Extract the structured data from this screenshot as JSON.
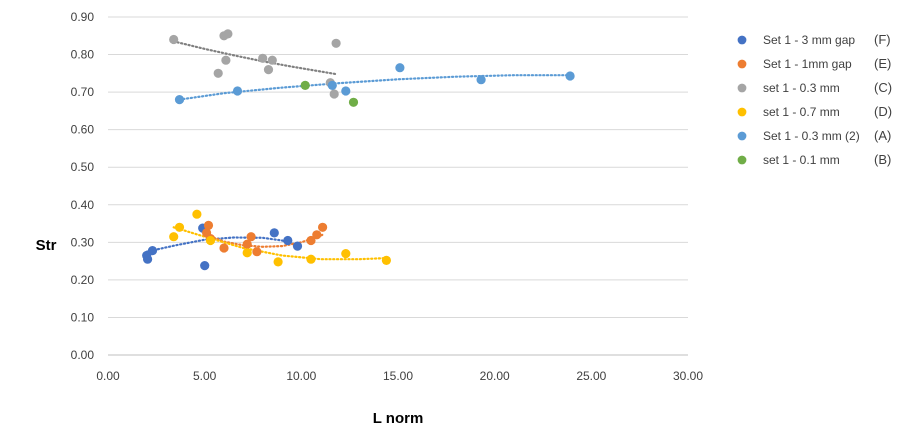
{
  "chart_data": {
    "type": "scatter",
    "xlabel": "L norm",
    "ylabel": "Str",
    "xlim": [
      0,
      30
    ],
    "ylim": [
      0,
      0.9
    ],
    "x_ticks": [
      "0.00",
      "5.00",
      "10.00",
      "15.00",
      "20.00",
      "25.00",
      "30.00"
    ],
    "y_ticks": [
      "0.00",
      "0.10",
      "0.20",
      "0.30",
      "0.40",
      "0.50",
      "0.60",
      "0.70",
      "0.80",
      "0.90"
    ],
    "grid": "horizontal",
    "legend_position": "right",
    "series": [
      {
        "name": "Set 1 - 3 mm gap",
        "tag": "(F)",
        "color": "#4472c4",
        "trend_color": "#4472c4",
        "points": [
          [
            2.0,
            0.265
          ],
          [
            2.05,
            0.255
          ],
          [
            2.3,
            0.278
          ],
          [
            4.9,
            0.338
          ],
          [
            5.0,
            0.238
          ],
          [
            8.6,
            0.325
          ],
          [
            9.3,
            0.305
          ],
          [
            9.8,
            0.29
          ]
        ],
        "trendline": [
          [
            2.0,
            0.275
          ],
          [
            3.5,
            0.292
          ],
          [
            5.0,
            0.307
          ],
          [
            6.5,
            0.313
          ],
          [
            8.0,
            0.312
          ],
          [
            9.0,
            0.305
          ],
          [
            9.8,
            0.293
          ]
        ]
      },
      {
        "name": "Set 1 - 1mm gap",
        "tag": "(E)",
        "color": "#ed7d31",
        "trend_color": "#ed7d31",
        "points": [
          [
            5.1,
            0.325
          ],
          [
            5.2,
            0.345
          ],
          [
            5.3,
            0.31
          ],
          [
            6.0,
            0.285
          ],
          [
            7.2,
            0.295
          ],
          [
            7.4,
            0.315
          ],
          [
            7.7,
            0.275
          ],
          [
            10.5,
            0.305
          ],
          [
            10.8,
            0.32
          ],
          [
            11.1,
            0.34
          ]
        ],
        "trendline": [
          [
            5.1,
            0.32
          ],
          [
            6.0,
            0.302
          ],
          [
            7.0,
            0.292
          ],
          [
            8.0,
            0.288
          ],
          [
            9.0,
            0.29
          ],
          [
            10.0,
            0.3
          ],
          [
            11.1,
            0.32
          ]
        ]
      },
      {
        "name": "set 1 - 0.3 mm",
        "tag": "(C)",
        "color": "#a5a5a5",
        "trend_color": "#808080",
        "points": [
          [
            3.4,
            0.84
          ],
          [
            5.7,
            0.75
          ],
          [
            6.0,
            0.85
          ],
          [
            6.2,
            0.855
          ],
          [
            6.1,
            0.785
          ],
          [
            8.0,
            0.79
          ],
          [
            8.3,
            0.76
          ],
          [
            8.5,
            0.785
          ],
          [
            11.5,
            0.725
          ],
          [
            11.7,
            0.695
          ],
          [
            11.8,
            0.83
          ]
        ],
        "trendline": [
          [
            3.4,
            0.835
          ],
          [
            5.0,
            0.815
          ],
          [
            6.5,
            0.798
          ],
          [
            8.0,
            0.782
          ],
          [
            9.5,
            0.768
          ],
          [
            11.8,
            0.748
          ]
        ]
      },
      {
        "name": "set 1 - 0.7 mm",
        "tag": "(D)",
        "color": "#ffc000",
        "trend_color": "#ffc000",
        "points": [
          [
            3.4,
            0.315
          ],
          [
            3.7,
            0.34
          ],
          [
            4.6,
            0.375
          ],
          [
            5.3,
            0.305
          ],
          [
            7.2,
            0.272
          ],
          [
            8.8,
            0.248
          ],
          [
            10.5,
            0.255
          ],
          [
            12.3,
            0.27
          ],
          [
            14.4,
            0.252
          ]
        ],
        "trendline": [
          [
            3.4,
            0.34
          ],
          [
            5.0,
            0.315
          ],
          [
            7.0,
            0.285
          ],
          [
            9.0,
            0.265
          ],
          [
            11.0,
            0.255
          ],
          [
            13.0,
            0.255
          ],
          [
            14.4,
            0.258
          ]
        ]
      },
      {
        "name": "Set 1 - 0.3 mm (2)",
        "tag": "(A)",
        "color": "#5b9bd5",
        "trend_color": "#5b9bd5",
        "points": [
          [
            3.7,
            0.68
          ],
          [
            6.7,
            0.703
          ],
          [
            11.6,
            0.718
          ],
          [
            12.3,
            0.703
          ],
          [
            15.1,
            0.765
          ],
          [
            19.3,
            0.733
          ],
          [
            23.9,
            0.743
          ]
        ],
        "trendline": [
          [
            3.7,
            0.68
          ],
          [
            6.0,
            0.697
          ],
          [
            9.0,
            0.712
          ],
          [
            12.0,
            0.724
          ],
          [
            15.0,
            0.734
          ],
          [
            18.0,
            0.741
          ],
          [
            21.0,
            0.745
          ],
          [
            23.9,
            0.745
          ]
        ]
      },
      {
        "name": "set 1 - 0.1 mm",
        "tag": "(B)",
        "color": "#70ad47",
        "trend_color": "#70ad47",
        "points": [
          [
            10.2,
            0.718
          ],
          [
            12.7,
            0.673
          ]
        ],
        "trendline": []
      }
    ]
  }
}
